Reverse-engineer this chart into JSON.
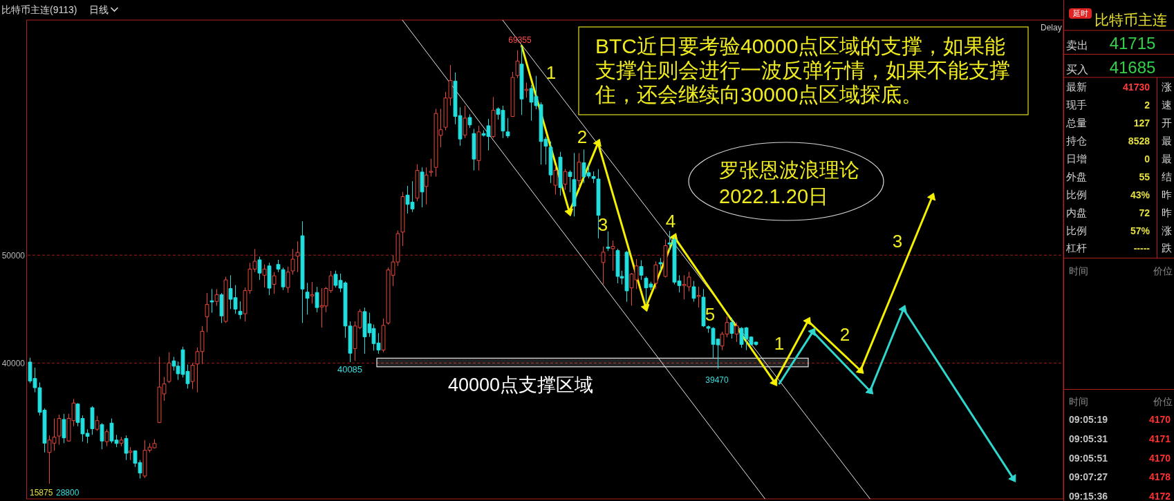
{
  "chart_data": [
    {
      "type": "candlestick",
      "title": "比特币主连(9113)",
      "subtitle": "日线",
      "categories": [
        null,
        null,
        null,
        null,
        null,
        null,
        null,
        null,
        null,
        null,
        null,
        null,
        null,
        null,
        null,
        null,
        null,
        null,
        null,
        null,
        null,
        null,
        null,
        null,
        null,
        null,
        null,
        null,
        null,
        null,
        null,
        null,
        null,
        null,
        null,
        null,
        null,
        null,
        null,
        null,
        null,
        null,
        null,
        null,
        null,
        null,
        null,
        null,
        null,
        null,
        null,
        null,
        null,
        null,
        null,
        null,
        null,
        null,
        null,
        null,
        null,
        null,
        null,
        null,
        null,
        null,
        null,
        null,
        null,
        null,
        null,
        null,
        null,
        null,
        null,
        null,
        null,
        null,
        null,
        null,
        null,
        null,
        null,
        null,
        null,
        null,
        null,
        null,
        null,
        null,
        null,
        null,
        null,
        null,
        null,
        null,
        null,
        null,
        null,
        null,
        null,
        null,
        null,
        null,
        null,
        null,
        null,
        null,
        null,
        null,
        null,
        null,
        null,
        null,
        null,
        null,
        null,
        null,
        null,
        null,
        null,
        null,
        null,
        null,
        null,
        null,
        null,
        null,
        null,
        null,
        null,
        null,
        null,
        null,
        null,
        null,
        null,
        null,
        null,
        null,
        null,
        null,
        null,
        null,
        null,
        null,
        null,
        null,
        null,
        null,
        null,
        null,
        null,
        null,
        null,
        null,
        null,
        null,
        null,
        null,
        null,
        null,
        null,
        null,
        null,
        null,
        null,
        null,
        null,
        null,
        null,
        null,
        null,
        null,
        null,
        null,
        null,
        null,
        null,
        null,
        null,
        null,
        null,
        null,
        null,
        null,
        null,
        null,
        null,
        null,
        null,
        null,
        null,
        null,
        null,
        null,
        null,
        null,
        null,
        null,
        null,
        null,
        null,
        null,
        null,
        null,
        null,
        null,
        null,
        null,
        null,
        null,
        null,
        null,
        null,
        null,
        null
      ],
      "ohlc": [
        [
          40090,
          40490,
          38140,
          38340
        ],
        [
          38570,
          39570,
          37290,
          37710
        ],
        [
          37710,
          38200,
          35140,
          35430
        ],
        [
          35630,
          35800,
          31710,
          32570
        ],
        [
          31710,
          33290,
          28800,
          32860
        ],
        [
          32570,
          34860,
          31860,
          33140
        ],
        [
          33230,
          35230,
          32430,
          34860
        ],
        [
          34770,
          35290,
          32570,
          33060
        ],
        [
          32770,
          35290,
          32710,
          34860
        ],
        [
          34660,
          36660,
          34140,
          36290
        ],
        [
          36200,
          36290,
          34140,
          34490
        ],
        [
          34860,
          35140,
          32710,
          33430
        ],
        [
          33490,
          33860,
          32570,
          33200
        ],
        [
          35860,
          36000,
          33340,
          33910
        ],
        [
          33860,
          35090,
          33710,
          34660
        ],
        [
          34290,
          34430,
          32000,
          32770
        ],
        [
          32710,
          33860,
          32290,
          33630
        ],
        [
          34430,
          34860,
          32570,
          32770
        ],
        [
          32860,
          33340,
          32200,
          32540
        ],
        [
          32570,
          33140,
          32290,
          32860
        ],
        [
          33000,
          33290,
          31000,
          31630
        ],
        [
          31740,
          32200,
          31000,
          31800
        ],
        [
          31860,
          31910,
          30370,
          30710
        ],
        [
          30770,
          31000,
          29290,
          29800
        ],
        [
          29520,
          32860,
          29340,
          31910
        ],
        [
          31910,
          32570,
          31710,
          32200
        ],
        [
          32140,
          32940,
          32090,
          32540
        ],
        [
          34490,
          40570,
          34430,
          37770
        ],
        [
          37140,
          38710,
          36490,
          38060
        ],
        [
          38290,
          41000,
          38140,
          40000
        ],
        [
          40200,
          40570,
          39290,
          39710
        ],
        [
          39710,
          40140,
          38430,
          39000
        ],
        [
          41230,
          41510,
          38660,
          38940
        ],
        [
          39230,
          39860,
          37630,
          38090
        ],
        [
          38290,
          40000,
          37570,
          39800
        ],
        [
          39910,
          41430,
          37290,
          41060
        ],
        [
          41060,
          43430,
          39910,
          42940
        ],
        [
          44290,
          46490,
          42860,
          45430
        ],
        [
          45770,
          46860,
          44660,
          45660
        ],
        [
          45710,
          46860,
          45290,
          46340
        ],
        [
          46340,
          46490,
          43710,
          44370
        ],
        [
          43860,
          48000,
          43710,
          47710
        ],
        [
          46910,
          48140,
          45000,
          45910
        ],
        [
          46060,
          47230,
          44570,
          45000
        ],
        [
          44800,
          45710,
          44090,
          44490
        ],
        [
          44570,
          47000,
          43860,
          46710
        ],
        [
          46710,
          49290,
          46430,
          48710
        ],
        [
          48710,
          50570,
          48430,
          49430
        ],
        [
          49570,
          49860,
          47710,
          48340
        ],
        [
          48140,
          49140,
          47000,
          48710
        ],
        [
          49000,
          49290,
          46290,
          46940
        ],
        [
          47290,
          48430,
          46430,
          48090
        ],
        [
          49140,
          49570,
          48430,
          48710
        ],
        [
          48660,
          48860,
          46770,
          47060
        ],
        [
          47000,
          48940,
          46510,
          48430
        ],
        [
          48540,
          50570,
          48200,
          49630
        ],
        [
          49910,
          51290,
          48430,
          50260
        ],
        [
          51800,
          53140,
          43710,
          46860
        ],
        [
          46570,
          47430,
          44490,
          46000
        ],
        [
          46260,
          47510,
          45510,
          46310
        ],
        [
          46540,
          47060,
          44710,
          45140
        ],
        [
          45230,
          46940,
          43290,
          45290
        ],
        [
          45290,
          47060,
          44710,
          46910
        ],
        [
          46710,
          48540,
          46510,
          48090
        ],
        [
          48230,
          48570,
          47000,
          47200
        ],
        [
          47660,
          48290,
          46570,
          46940
        ],
        [
          47430,
          47570,
          42340,
          43430
        ],
        [
          43430,
          43860,
          40085,
          40910
        ],
        [
          41340,
          43860,
          40200,
          43430
        ],
        [
          43290,
          45000,
          43140,
          44770
        ],
        [
          44770,
          45140,
          40860,
          42430
        ],
        [
          43630,
          44660,
          42430,
          42800
        ],
        [
          43200,
          43570,
          41140,
          41800
        ],
        [
          41860,
          42770,
          40860,
          41200
        ],
        [
          41200,
          44140,
          41000,
          43490
        ],
        [
          43710,
          48860,
          43570,
          48630
        ],
        [
          48140,
          50000,
          47140,
          49370
        ],
        [
          49370,
          52290,
          49000,
          52000
        ],
        [
          52140,
          55860,
          50860,
          55430
        ],
        [
          55570,
          56430,
          53860,
          54710
        ],
        [
          54910,
          56860,
          54000,
          54290
        ],
        [
          55290,
          58430,
          55000,
          57860
        ],
        [
          57710,
          58140,
          54430,
          55860
        ],
        [
          56370,
          58140,
          54710,
          57430
        ],
        [
          57690,
          58940,
          57290,
          57770
        ],
        [
          58140,
          63570,
          57290,
          63140
        ],
        [
          61110,
          63570,
          60000,
          61630
        ],
        [
          61860,
          65140,
          61570,
          64570
        ],
        [
          64570,
          67630,
          63860,
          66200
        ],
        [
          66140,
          66940,
          62140,
          62860
        ],
        [
          62940,
          63710,
          60140,
          60770
        ],
        [
          61140,
          63860,
          60860,
          62710
        ],
        [
          62770,
          63060,
          61800,
          62080
        ],
        [
          61280,
          61710,
          57860,
          58910
        ],
        [
          58770,
          62000,
          57860,
          61430
        ],
        [
          61280,
          61570,
          61000,
          61110
        ],
        [
          62000,
          62630,
          59710,
          61000
        ],
        [
          61000,
          64660,
          60860,
          63430
        ],
        [
          63570,
          63710,
          62570,
          63060
        ],
        [
          63430,
          63860,
          60860,
          61510
        ],
        [
          61430,
          62710,
          60860,
          61060
        ],
        [
          62860,
          67000,
          62860,
          66480
        ],
        [
          66660,
          69000,
          66430,
          68000
        ],
        [
          67710,
          69355,
          63000,
          64480
        ],
        [
          65300,
          66000,
          64600,
          65350
        ],
        [
          65460,
          65780,
          62470,
          64180
        ],
        [
          64710,
          66630,
          63530,
          63860
        ],
        [
          63960,
          64180,
          58400,
          60540
        ],
        [
          60760,
          60970,
          58400,
          60110
        ],
        [
          60010,
          60540,
          56690,
          57440
        ],
        [
          56480,
          58300,
          55620,
          57870
        ],
        [
          59090,
          59580,
          55520,
          56270
        ],
        [
          56590,
          57980,
          56050,
          57760
        ],
        [
          57700,
          57870,
          55840,
          57290
        ],
        [
          57010,
          59470,
          53590,
          54550
        ],
        [
          56910,
          59470,
          56270,
          58620
        ],
        [
          58570,
          59790,
          56690,
          57270
        ],
        [
          57650,
          58400,
          57120,
          57330
        ],
        [
          57290,
          57760,
          56690,
          57120
        ],
        [
          57060,
          57980,
          51560,
          53700
        ],
        [
          49320,
          50810,
          47290,
          50280
        ],
        [
          50750,
          52200,
          50390,
          50640
        ],
        [
          50600,
          51350,
          48570,
          50810
        ],
        [
          50430,
          50600,
          47390,
          48030
        ],
        [
          48030,
          48570,
          47290,
          47880
        ],
        [
          50280,
          50390,
          45680,
          46690
        ],
        [
          46970,
          48350,
          45320,
          48250
        ],
        [
          47710,
          49640,
          46860,
          49000
        ],
        [
          48950,
          49530,
          47710,
          48140
        ],
        [
          47860,
          48030,
          45580,
          46970
        ],
        [
          47330,
          47540,
          46750,
          47030
        ],
        [
          47390,
          49420,
          46860,
          49100
        ],
        [
          49280,
          49740,
          48570,
          49220
        ],
        [
          48030,
          51450,
          47930,
          50880
        ],
        [
          51130,
          52250,
          50390,
          51030
        ],
        [
          51450,
          51670,
          47290,
          47500
        ],
        [
          47610,
          48140,
          46540,
          47180
        ],
        [
          47180,
          48140,
          45900,
          47290
        ],
        [
          47070,
          48460,
          46640,
          47970
        ],
        [
          47070,
          47610,
          45680,
          46000
        ],
        [
          46170,
          47070,
          45150,
          46260
        ],
        [
          46110,
          46860,
          43330,
          43440
        ],
        [
          43370,
          43480,
          42800,
          43220
        ],
        [
          43220,
          43330,
          40440,
          41730
        ],
        [
          42220,
          42260,
          39470,
          41680
        ],
        [
          41580,
          42900,
          41190,
          42690
        ],
        [
          42690,
          44330,
          42370,
          43760
        ],
        [
          43760,
          44190,
          42260,
          42750
        ],
        [
          42690,
          43760,
          41940,
          43440
        ],
        [
          43220,
          43330,
          41410,
          41730
        ],
        [
          43270,
          43330,
          41190,
          42260
        ],
        [
          42410,
          42470,
          41620,
          41730
        ],
        [
          41940,
          41980,
          41600,
          41730
        ],
        null,
        null,
        null,
        null,
        null,
        null,
        null,
        null,
        null,
        null,
        null,
        null,
        null,
        null,
        null,
        null,
        null,
        null,
        null,
        null,
        null,
        null,
        null,
        null,
        null,
        null,
        null,
        null,
        null,
        null,
        null,
        null,
        null,
        null,
        null,
        null,
        null,
        null,
        null,
        null,
        null,
        null,
        null,
        null,
        null,
        null,
        null,
        null,
        null,
        null,
        null,
        null,
        null,
        null,
        null,
        null,
        null,
        null,
        null,
        null,
        null,
        null,
        null,
        null
      ],
      "series": [
        {
          "type": "line",
          "color": "#e8e8e8",
          "values": [
            null,
            null,
            null,
            null,
            null,
            null,
            null,
            null,
            null,
            null,
            null,
            null,
            null,
            null,
            null,
            null,
            null,
            null,
            null,
            null,
            null,
            null,
            null,
            null,
            null,
            null,
            null,
            null,
            null,
            null,
            null,
            null,
            null,
            null,
            null,
            null,
            null,
            null,
            null,
            null,
            null,
            null,
            null,
            null,
            null,
            null,
            null,
            null,
            null,
            null,
            null,
            null,
            null,
            null,
            null,
            null,
            null,
            null,
            null,
            null,
            null,
            null,
            null,
            null,
            null,
            null,
            null,
            null,
            null,
            null,
            null,
            null,
            null,
            null,
            null,
            null,
            null,
            null,
            null,
            null,
            null,
            null,
            null,
            null,
            null,
            null,
            null,
            null,
            null,
            null,
            null,
            null,
            null,
            null,
            null,
            null,
            null,
            null,
            null,
            71800,
            null,
            null,
            null,
            null,
            null,
            null,
            null,
            null,
            null,
            null,
            null,
            null,
            null,
            null,
            null,
            null,
            null,
            null,
            null,
            null,
            null,
            null,
            null,
            null,
            null,
            null,
            null,
            null,
            null,
            null,
            null,
            null,
            null,
            null,
            null,
            null,
            null,
            null,
            null,
            null,
            null,
            null,
            null,
            null,
            null,
            null,
            null,
            null,
            null,
            null,
            null,
            null,
            null,
            null,
            null,
            null,
            null,
            null,
            null,
            null,
            null,
            null,
            null,
            null,
            null,
            null,
            null,
            null,
            null,
            null,
            null,
            null,
            null,
            null,
            null,
            null,
            27400,
            null,
            null,
            null,
            null,
            null,
            null,
            null,
            null,
            null,
            null,
            null,
            null,
            null,
            null,
            null,
            null,
            null,
            null,
            null,
            null,
            null,
            null,
            null,
            null,
            null,
            null,
            null,
            null,
            null,
            null,
            null,
            null,
            null,
            null,
            null,
            null,
            null,
            null,
            null,
            null
          ]
        },
        {
          "type": "line",
          "color": "#e8e8e8",
          "values": [
            null,
            null,
            null,
            null,
            null,
            null,
            null,
            null,
            null,
            null,
            null,
            null,
            null,
            null,
            null,
            null,
            null,
            null,
            null,
            null,
            null,
            null,
            null,
            null,
            null,
            null,
            null,
            null,
            null,
            null,
            null,
            null,
            null,
            null,
            null,
            null,
            null,
            null,
            null,
            null,
            null,
            null,
            null,
            null,
            null,
            null,
            null,
            null,
            null,
            null,
            null,
            null,
            null,
            null,
            null,
            null,
            null,
            null,
            null,
            null,
            null,
            null,
            null,
            null,
            null,
            null,
            null,
            null,
            null,
            null,
            null,
            null,
            null,
            null,
            null,
            null,
            null,
            null,
            71800,
            null,
            null,
            null,
            null,
            null,
            null,
            null,
            null,
            null,
            null,
            null,
            null,
            null,
            null,
            null,
            null,
            null,
            null,
            null,
            null,
            null,
            null,
            null,
            null,
            null,
            null,
            null,
            null,
            null,
            null,
            null,
            null,
            null,
            null,
            null,
            null,
            null,
            null,
            null,
            null,
            null,
            null,
            null,
            null,
            null,
            null,
            null,
            null,
            null,
            null,
            null,
            null,
            null,
            null,
            null,
            null,
            null,
            null,
            null,
            null,
            null,
            null,
            null,
            null,
            null,
            null,
            null,
            null,
            null,
            null,
            null,
            null,
            null,
            null,
            null,
            27400,
            null,
            null,
            null,
            null,
            null,
            null,
            null,
            null,
            null,
            null,
            null,
            null,
            null,
            null,
            null,
            null,
            null,
            null,
            null,
            null,
            null,
            null,
            null,
            null,
            null,
            null,
            null,
            null,
            null,
            null,
            null,
            null,
            null,
            null,
            null,
            null,
            null,
            null,
            null,
            null,
            null,
            null,
            null,
            null,
            null,
            null,
            null,
            null,
            null,
            null,
            null,
            null,
            null,
            null,
            null,
            null,
            null,
            null,
            null,
            null,
            null,
            null
          ]
        },
        {
          "type": "line",
          "color": "#f5f000",
          "marker": "triangle",
          "values": [
            null,
            null,
            null,
            null,
            null,
            null,
            null,
            null,
            null,
            null,
            null,
            null,
            null,
            null,
            null,
            null,
            null,
            null,
            null,
            null,
            null,
            null,
            null,
            null,
            null,
            null,
            null,
            null,
            null,
            null,
            null,
            null,
            null,
            null,
            null,
            null,
            null,
            null,
            null,
            null,
            null,
            null,
            null,
            null,
            null,
            null,
            null,
            null,
            null,
            null,
            null,
            null,
            null,
            null,
            null,
            null,
            null,
            null,
            null,
            null,
            null,
            null,
            null,
            null,
            null,
            null,
            null,
            null,
            null,
            null,
            null,
            null,
            null,
            null,
            null,
            null,
            null,
            null,
            null,
            null,
            null,
            null,
            null,
            null,
            null,
            null,
            null,
            null,
            null,
            null,
            null,
            null,
            null,
            null,
            null,
            null,
            null,
            null,
            null,
            null,
            null,
            null,
            null,
            69400,
            null,
            null,
            null,
            null,
            null,
            null,
            null,
            null,
            null,
            54000,
            null,
            null,
            null,
            null,
            null,
            60400,
            null,
            null,
            null,
            null,
            null,
            null,
            null,
            null,
            null,
            45150,
            null,
            null,
            null,
            null,
            null,
            51670,
            null,
            null,
            null,
            null,
            null,
            null,
            null,
            null,
            null,
            null,
            null,
            null,
            null,
            null,
            null,
            null,
            null,
            null,
            null,
            null,
            38200,
            null,
            null,
            null,
            null,
            null,
            null,
            43900,
            null,
            null,
            null,
            null,
            null,
            null,
            null,
            null,
            null,
            null,
            39300,
            null,
            null,
            null,
            null,
            null,
            null,
            null,
            null,
            null,
            null,
            null,
            null,
            null,
            null,
            55400,
            null,
            null,
            null,
            null,
            null,
            null,
            null,
            null,
            null,
            null,
            null,
            null,
            null,
            null,
            null,
            null,
            null,
            null,
            null,
            null,
            null,
            null,
            null,
            null,
            null,
            null,
            null
          ]
        },
        {
          "type": "line",
          "color": "#2fd6cc",
          "marker": "triangle",
          "values": [
            null,
            null,
            null,
            null,
            null,
            null,
            null,
            null,
            null,
            null,
            null,
            null,
            null,
            null,
            null,
            null,
            null,
            null,
            null,
            null,
            null,
            null,
            null,
            null,
            null,
            null,
            null,
            null,
            null,
            null,
            null,
            null,
            null,
            null,
            null,
            null,
            null,
            null,
            null,
            null,
            null,
            null,
            null,
            null,
            null,
            null,
            null,
            null,
            null,
            null,
            null,
            null,
            null,
            null,
            null,
            null,
            null,
            null,
            null,
            null,
            null,
            null,
            null,
            null,
            null,
            null,
            null,
            null,
            null,
            null,
            null,
            null,
            null,
            null,
            null,
            null,
            null,
            null,
            null,
            null,
            null,
            null,
            null,
            null,
            null,
            null,
            null,
            null,
            null,
            null,
            null,
            null,
            null,
            null,
            null,
            null,
            null,
            null,
            null,
            null,
            null,
            null,
            null,
            null,
            null,
            null,
            null,
            null,
            null,
            null,
            null,
            null,
            null,
            null,
            null,
            null,
            null,
            null,
            null,
            null,
            null,
            null,
            null,
            null,
            null,
            null,
            null,
            null,
            null,
            null,
            null,
            null,
            null,
            null,
            null,
            null,
            null,
            null,
            null,
            null,
            null,
            null,
            null,
            null,
            null,
            null,
            null,
            null,
            null,
            null,
            null,
            null,
            null,
            null,
            null,
            null,
            null,
            38100,
            null,
            null,
            null,
            null,
            null,
            null,
            42900,
            null,
            null,
            null,
            null,
            null,
            null,
            null,
            null,
            null,
            null,
            null,
            37400,
            null,
            null,
            null,
            null,
            null,
            null,
            45000,
            null,
            null,
            null,
            null,
            null,
            null,
            null,
            null,
            null,
            null,
            null,
            null,
            null,
            null,
            null,
            null,
            null,
            null,
            null,
            null,
            null,
            null,
            29300,
            null,
            null,
            null,
            null,
            null,
            null,
            null,
            null,
            null,
            null
          ]
        }
      ],
      "bands": [
        {
          "axis": "y",
          "from": 39650,
          "to": 40450,
          "label": "40000点支撑区域",
          "color": "#e8e8e8"
        }
      ],
      "ylim": [
        27400,
        71800
      ],
      "yticks": [
        40000,
        50000
      ],
      "grid": "y",
      "annotations": [
        "Delay",
        "69355",
        "40085",
        "39470",
        "15875",
        "28800",
        "1",
        "2",
        "3",
        "4",
        "5",
        "1",
        "2",
        "3",
        "BTC近日要考验40000点区域的支撑，如果能支撑住则会进行一波反弹行情，如果不能支撑住，还会继续向30000点区域探底。",
        "罗张恩波浪理论",
        "2022.1.20日"
      ]
    },
    {
      "type": "other",
      "title": "比特币主连",
      "annotations": [
        "延时",
        "卖出",
        "41715",
        "买入",
        "41685",
        "最新",
        "41730",
        "现手",
        "2",
        "总量",
        "127",
        "持仓",
        "8528",
        "日增",
        "0",
        "外盘",
        "55",
        "比例",
        "43%",
        "内盘",
        "72",
        "比例",
        "57%",
        "杠杆",
        "-----",
        "涨",
        "速",
        "开",
        "最",
        "最",
        "结",
        "昨",
        "昨",
        "涨",
        "跌",
        "时间",
        "价位",
        "时间",
        "价位",
        "09:05:19",
        "4170",
        "09:05:31",
        "4171",
        "09:05:51",
        "4170",
        "09:07:27",
        "4178",
        "09:15:36",
        "4172"
      ]
    }
  ]
}
